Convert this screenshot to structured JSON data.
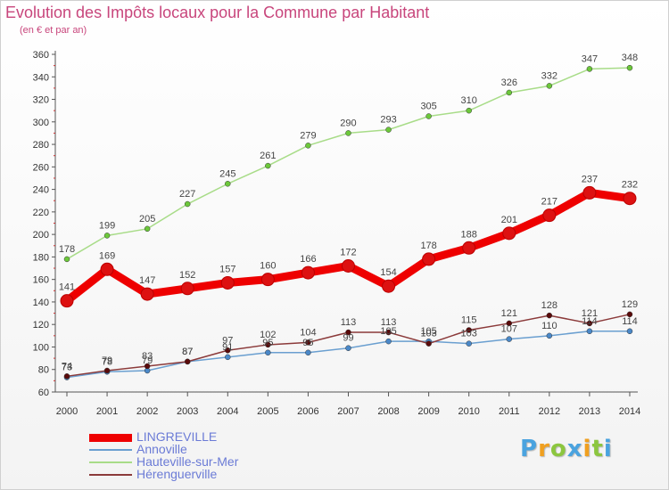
{
  "title": "Evolution des Impôts locaux pour la Commune par Habitant",
  "subtitle": "(en € et par an)",
  "logo": {
    "text": "Proxiti",
    "letters": [
      {
        "ch": "P",
        "color": "#4aa3df"
      },
      {
        "ch": "r",
        "color": "#f0a020"
      },
      {
        "ch": "o",
        "color": "#8cc63f"
      },
      {
        "ch": "x",
        "color": "#4aa3df"
      },
      {
        "ch": "i",
        "color": "#f0a020"
      },
      {
        "ch": "t",
        "color": "#8cc63f"
      },
      {
        "ch": "i",
        "color": "#4aa3df"
      }
    ]
  },
  "chart_data": {
    "type": "line",
    "title": "Evolution des Impôts locaux pour la Commune par Habitant",
    "subtitle": "(en € et par an)",
    "xlabel": "",
    "ylabel": "",
    "ylim": [
      60,
      360
    ],
    "y_ticks": [
      60,
      80,
      100,
      120,
      140,
      160,
      180,
      200,
      220,
      240,
      260,
      280,
      300,
      320,
      340,
      360
    ],
    "grid": false,
    "legend_position": "bottom-left",
    "x": [
      "2000",
      "2001",
      "2002",
      "2003",
      "2004",
      "2005",
      "2006",
      "2007",
      "2008",
      "2009",
      "2010",
      "2011",
      "2012",
      "2013",
      "2014"
    ],
    "series": [
      {
        "name": "LINGREVILLE",
        "color": "#ee0000",
        "marker": "#dd1111",
        "emphasis": true,
        "values": [
          141,
          169,
          147,
          152,
          157,
          160,
          166,
          172,
          154,
          178,
          188,
          201,
          217,
          237,
          232
        ]
      },
      {
        "name": "Annoville",
        "color": "#6a9fd0",
        "marker": "#4a88c8",
        "emphasis": false,
        "values": [
          73,
          78,
          79,
          87,
          91,
          95,
          95,
          99,
          105,
          105,
          103,
          107,
          110,
          114,
          114
        ]
      },
      {
        "name": "Hauteville-sur-Mer",
        "color": "#a8dc88",
        "marker": "#6cc83a",
        "emphasis": false,
        "values": [
          178,
          199,
          205,
          227,
          245,
          261,
          279,
          290,
          293,
          305,
          310,
          326,
          332,
          347,
          348
        ]
      },
      {
        "name": "Hérenguerville",
        "color": "#8b3a3a",
        "marker": "#5a0a0a",
        "emphasis": false,
        "values": [
          74,
          79,
          83,
          87,
          97,
          102,
          104,
          113,
          113,
          103,
          115,
          121,
          128,
          121,
          129
        ]
      }
    ]
  }
}
